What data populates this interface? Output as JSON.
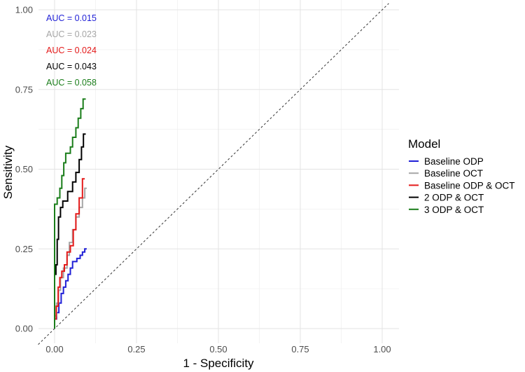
{
  "chart_data": {
    "type": "line",
    "title": "",
    "xlabel": "1 - Specificity",
    "ylabel": "Sensitivity",
    "xlim": [
      0,
      1
    ],
    "ylim": [
      0,
      1
    ],
    "x_ticks": [
      "0.00",
      "0.25",
      "0.50",
      "0.75",
      "1.00"
    ],
    "y_ticks": [
      "0.00",
      "0.25",
      "0.50",
      "0.75",
      "1.00"
    ],
    "grid": true,
    "reference_line": "diagonal dashed",
    "legend": {
      "title": "Model",
      "position": "right"
    },
    "series": [
      {
        "name": "Baseline ODP",
        "color": "#1f1fd6",
        "auc_label": "AUC = 0.015",
        "points": [
          [
            0,
            0
          ],
          [
            0,
            0.03
          ],
          [
            0.006,
            0.03
          ],
          [
            0.006,
            0.05
          ],
          [
            0.013,
            0.05
          ],
          [
            0.013,
            0.08
          ],
          [
            0.02,
            0.08
          ],
          [
            0.02,
            0.11
          ],
          [
            0.027,
            0.11
          ],
          [
            0.027,
            0.13
          ],
          [
            0.034,
            0.13
          ],
          [
            0.034,
            0.15
          ],
          [
            0.041,
            0.15
          ],
          [
            0.041,
            0.17
          ],
          [
            0.048,
            0.17
          ],
          [
            0.048,
            0.19
          ],
          [
            0.055,
            0.19
          ],
          [
            0.055,
            0.21
          ],
          [
            0.068,
            0.21
          ],
          [
            0.068,
            0.22
          ],
          [
            0.078,
            0.22
          ],
          [
            0.078,
            0.23
          ],
          [
            0.085,
            0.23
          ],
          [
            0.085,
            0.24
          ],
          [
            0.092,
            0.24
          ],
          [
            0.092,
            0.25
          ],
          [
            0.098,
            0.25
          ]
        ]
      },
      {
        "name": "Baseline OCT",
        "color": "#a6a6a6",
        "auc_label": "AUC = 0.023",
        "points": [
          [
            0,
            0
          ],
          [
            0,
            0.04
          ],
          [
            0.006,
            0.04
          ],
          [
            0.006,
            0.08
          ],
          [
            0.012,
            0.08
          ],
          [
            0.012,
            0.12
          ],
          [
            0.018,
            0.12
          ],
          [
            0.018,
            0.16
          ],
          [
            0.027,
            0.16
          ],
          [
            0.027,
            0.19
          ],
          [
            0.038,
            0.19
          ],
          [
            0.038,
            0.23
          ],
          [
            0.045,
            0.23
          ],
          [
            0.045,
            0.27
          ],
          [
            0.055,
            0.27
          ],
          [
            0.055,
            0.31
          ],
          [
            0.065,
            0.31
          ],
          [
            0.065,
            0.35
          ],
          [
            0.075,
            0.35
          ],
          [
            0.075,
            0.38
          ],
          [
            0.085,
            0.38
          ],
          [
            0.085,
            0.41
          ],
          [
            0.092,
            0.41
          ],
          [
            0.092,
            0.44
          ],
          [
            0.098,
            0.44
          ]
        ]
      },
      {
        "name": "Baseline ODP & OCT",
        "color": "#e41a1a",
        "auc_label": "AUC = 0.024",
        "points": [
          [
            0,
            0
          ],
          [
            0,
            0.03
          ],
          [
            0.005,
            0.03
          ],
          [
            0.005,
            0.07
          ],
          [
            0.011,
            0.07
          ],
          [
            0.011,
            0.13
          ],
          [
            0.016,
            0.13
          ],
          [
            0.016,
            0.16
          ],
          [
            0.022,
            0.16
          ],
          [
            0.022,
            0.18
          ],
          [
            0.03,
            0.18
          ],
          [
            0.03,
            0.2
          ],
          [
            0.038,
            0.2
          ],
          [
            0.038,
            0.24
          ],
          [
            0.048,
            0.24
          ],
          [
            0.048,
            0.26
          ],
          [
            0.057,
            0.26
          ],
          [
            0.057,
            0.31
          ],
          [
            0.065,
            0.31
          ],
          [
            0.065,
            0.36
          ],
          [
            0.075,
            0.36
          ],
          [
            0.075,
            0.41
          ],
          [
            0.085,
            0.41
          ],
          [
            0.085,
            0.47
          ],
          [
            0.092,
            0.47
          ]
        ]
      },
      {
        "name": "2 ODP & OCT",
        "color": "#000000",
        "auc_label": "AUC = 0.043",
        "points": [
          [
            0,
            0
          ],
          [
            0,
            0.17
          ],
          [
            0.004,
            0.17
          ],
          [
            0.004,
            0.2
          ],
          [
            0.008,
            0.2
          ],
          [
            0.008,
            0.28
          ],
          [
            0.012,
            0.28
          ],
          [
            0.012,
            0.35
          ],
          [
            0.018,
            0.35
          ],
          [
            0.018,
            0.38
          ],
          [
            0.025,
            0.38
          ],
          [
            0.025,
            0.4
          ],
          [
            0.04,
            0.4
          ],
          [
            0.04,
            0.43
          ],
          [
            0.055,
            0.43
          ],
          [
            0.055,
            0.46
          ],
          [
            0.065,
            0.46
          ],
          [
            0.065,
            0.49
          ],
          [
            0.075,
            0.49
          ],
          [
            0.075,
            0.53
          ],
          [
            0.082,
            0.53
          ],
          [
            0.082,
            0.57
          ],
          [
            0.088,
            0.57
          ],
          [
            0.088,
            0.61
          ],
          [
            0.095,
            0.61
          ]
        ]
      },
      {
        "name": "3 ODP & OCT",
        "color": "#1a7d1a",
        "auc_label": "AUC = 0.058",
        "points": [
          [
            0,
            0
          ],
          [
            0,
            0.39
          ],
          [
            0.008,
            0.39
          ],
          [
            0.008,
            0.41
          ],
          [
            0.016,
            0.41
          ],
          [
            0.016,
            0.44
          ],
          [
            0.022,
            0.44
          ],
          [
            0.022,
            0.48
          ],
          [
            0.028,
            0.48
          ],
          [
            0.028,
            0.52
          ],
          [
            0.034,
            0.52
          ],
          [
            0.034,
            0.55
          ],
          [
            0.048,
            0.55
          ],
          [
            0.048,
            0.57
          ],
          [
            0.055,
            0.57
          ],
          [
            0.055,
            0.6
          ],
          [
            0.065,
            0.6
          ],
          [
            0.065,
            0.63
          ],
          [
            0.072,
            0.63
          ],
          [
            0.072,
            0.66
          ],
          [
            0.08,
            0.66
          ],
          [
            0.08,
            0.69
          ],
          [
            0.087,
            0.69
          ],
          [
            0.087,
            0.72
          ],
          [
            0.095,
            0.72
          ]
        ]
      }
    ]
  }
}
